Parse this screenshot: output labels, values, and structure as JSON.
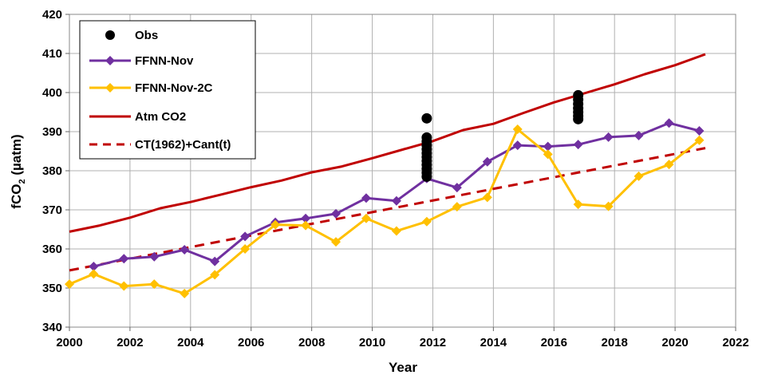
{
  "chart_data": {
    "type": "line",
    "xlabel": "Year",
    "ylabel_main": "fCO",
    "ylabel_sub": "2",
    "ylabel_unit": " (µatm)",
    "xlim": [
      2000,
      2022
    ],
    "ylim": [
      340,
      420
    ],
    "x_ticks": [
      2000,
      2002,
      2004,
      2006,
      2008,
      2010,
      2012,
      2014,
      2016,
      2018,
      2020,
      2022
    ],
    "y_ticks": [
      340,
      350,
      360,
      370,
      380,
      390,
      400,
      410,
      420
    ],
    "grid": true,
    "legend_position": "top-left",
    "series": [
      {
        "name": "Obs",
        "style": "points",
        "color": "#000000",
        "points": [
          [
            2011.8,
            393.4
          ],
          [
            2011.8,
            388.5
          ],
          [
            2011.8,
            387.5
          ],
          [
            2011.8,
            386.5
          ],
          [
            2011.8,
            385.5
          ],
          [
            2011.8,
            384.5
          ],
          [
            2011.8,
            383.5
          ],
          [
            2011.8,
            382.5
          ],
          [
            2011.8,
            381.5
          ],
          [
            2011.8,
            380.5
          ],
          [
            2011.8,
            379.5
          ],
          [
            2011.8,
            378.5
          ],
          [
            2016.8,
            399.3
          ],
          [
            2016.8,
            398.2
          ],
          [
            2016.8,
            397.1
          ],
          [
            2016.8,
            396.0
          ],
          [
            2016.8,
            395.0
          ],
          [
            2016.8,
            394.0
          ],
          [
            2016.8,
            393.2
          ]
        ]
      },
      {
        "name": "FFNN-Nov",
        "style": "line-diamond",
        "color": "#7030A0",
        "x": [
          2000.8,
          2001.8,
          2002.8,
          2003.8,
          2004.8,
          2005.8,
          2006.8,
          2007.8,
          2008.8,
          2009.8,
          2010.8,
          2011.8,
          2012.8,
          2013.8,
          2014.8,
          2015.8,
          2016.8,
          2017.8,
          2018.8,
          2019.8,
          2020.8
        ],
        "y": [
          355.5,
          357.5,
          358.0,
          359.8,
          356.8,
          363.2,
          366.8,
          367.8,
          369.0,
          373.0,
          372.3,
          378.0,
          375.7,
          382.3,
          386.5,
          386.2,
          386.7,
          388.6,
          389.0,
          392.2,
          390.2
        ]
      },
      {
        "name": "FFNN-Nov-2C",
        "style": "line-diamond",
        "color": "#FFC000",
        "x": [
          2000,
          2000.8,
          2001.8,
          2002.8,
          2003.8,
          2004.8,
          2005.8,
          2006.8,
          2007.8,
          2008.8,
          2009.8,
          2010.8,
          2011.8,
          2012.8,
          2013.8,
          2014.8,
          2015.8,
          2016.8,
          2017.8,
          2018.8,
          2019.8,
          2020.8
        ],
        "y": [
          351.0,
          353.6,
          350.5,
          351.0,
          348.6,
          353.4,
          360.0,
          366.2,
          366.0,
          361.8,
          367.8,
          364.6,
          367.0,
          370.8,
          373.2,
          390.6,
          384.2,
          371.4,
          370.9,
          378.6,
          381.6,
          387.8
        ]
      },
      {
        "name": "Atm CO2",
        "style": "line",
        "color": "#C00000",
        "x": [
          2000,
          2001,
          2002,
          2003,
          2004,
          2005,
          2006,
          2007,
          2008,
          2009,
          2010,
          2011,
          2012,
          2013,
          2014,
          2015,
          2016,
          2017,
          2018,
          2019,
          2020,
          2021
        ],
        "y": [
          364.4,
          366.0,
          368.0,
          370.4,
          372.0,
          373.9,
          375.8,
          377.5,
          379.6,
          381.1,
          383.2,
          385.4,
          387.6,
          390.4,
          392.0,
          394.8,
          397.5,
          399.8,
          402.1,
          404.7,
          407.0,
          409.8
        ]
      },
      {
        "name": "CT(1962)+Cant(t)",
        "style": "dashed",
        "color": "#C00000",
        "x": [
          2000,
          2021
        ],
        "y": [
          354.5,
          385.8
        ]
      }
    ]
  }
}
